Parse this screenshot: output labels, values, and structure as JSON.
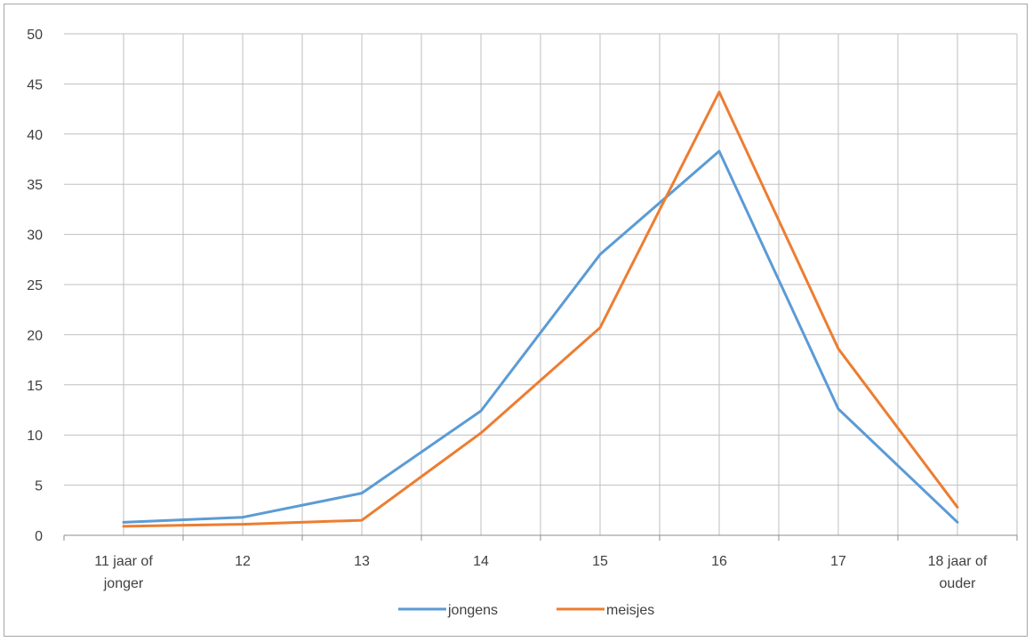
{
  "chart_data": {
    "type": "line",
    "title": "",
    "xlabel": "",
    "ylabel": "",
    "ylim": [
      0,
      50
    ],
    "y_ticks": [
      0,
      5,
      10,
      15,
      20,
      25,
      30,
      35,
      40,
      45,
      50
    ],
    "categories": [
      [
        "11 jaar of",
        "jonger"
      ],
      [
        "12"
      ],
      [
        "13"
      ],
      [
        "14"
      ],
      [
        "15"
      ],
      [
        "16"
      ],
      [
        "17"
      ],
      [
        "18 jaar of",
        "ouder"
      ]
    ],
    "series": [
      {
        "name": "jongens",
        "color": "#5b9bd5",
        "values": [
          1.3,
          1.8,
          4.2,
          12.4,
          28.0,
          38.3,
          12.6,
          1.3
        ]
      },
      {
        "name": "meisjes",
        "color": "#ed7d31",
        "values": [
          0.9,
          1.1,
          1.5,
          10.2,
          20.7,
          44.2,
          18.6,
          2.8
        ]
      }
    ],
    "grid": true,
    "legend_position": "bottom"
  }
}
